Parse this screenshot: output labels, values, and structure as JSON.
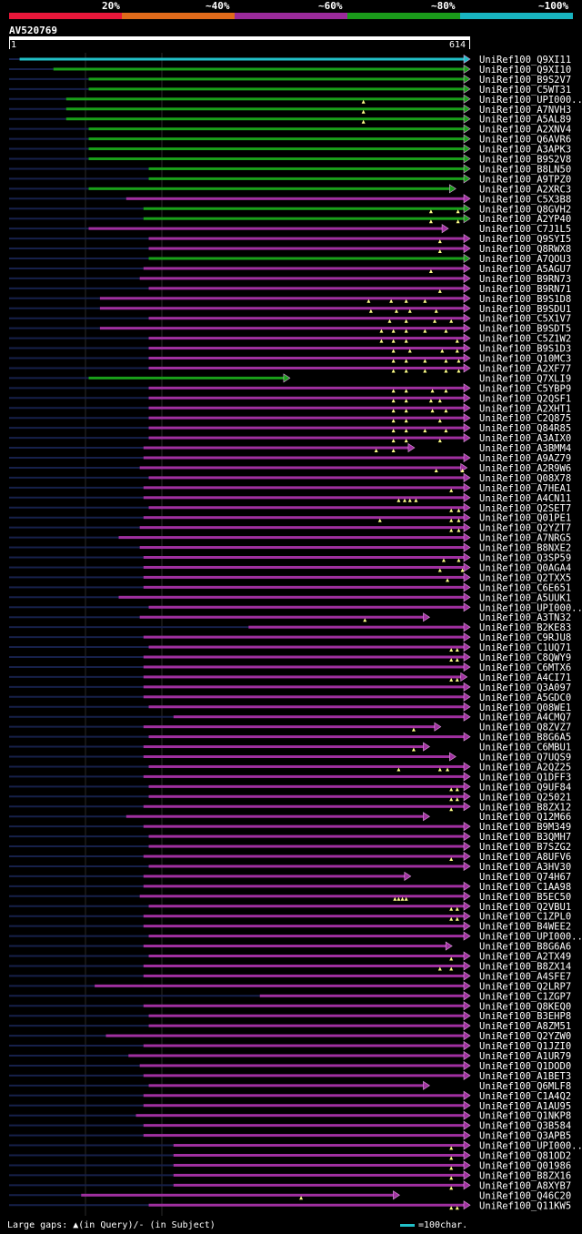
{
  "scale": {
    "labels": [
      "20%",
      "~40%",
      "~60%",
      "~80%",
      "~100%"
    ],
    "colors": [
      "#e8173a",
      "#e06a1a",
      "#9a2a9a",
      "#1a9a1a",
      "#18b4c0"
    ]
  },
  "chart_data": {
    "type": "alignment",
    "title": "AV520769",
    "query_start": "1",
    "query_end": "614",
    "xlim": [
      1,
      614
    ],
    "footer": "Large gaps: ▲(in Query)/- (in Subject)",
    "legend": "=100char.",
    "hits": [
      {
        "name": "UniRef100_Q9XI11",
        "start": 15,
        "end": 614,
        "color": "cyan",
        "gaps": []
      },
      {
        "name": "UniRef100_Q9XI10",
        "start": 60,
        "end": 614,
        "color": "green",
        "gaps": []
      },
      {
        "name": "UniRef100_B9S2V7",
        "start": 107,
        "end": 614,
        "color": "green",
        "gaps": []
      },
      {
        "name": "UniRef100_C5WT31",
        "start": 107,
        "end": 614,
        "color": "green",
        "gaps": []
      },
      {
        "name": "UniRef100_UPI000..",
        "start": 77,
        "end": 614,
        "color": "green",
        "gaps": [
          473
        ]
      },
      {
        "name": "UniRef100_A7NVH3",
        "start": 77,
        "end": 614,
        "color": "green",
        "gaps": [
          473
        ]
      },
      {
        "name": "UniRef100_A5AL89",
        "start": 77,
        "end": 614,
        "color": "green",
        "gaps": [
          473
        ]
      },
      {
        "name": "UniRef100_A2XNV4",
        "start": 107,
        "end": 614,
        "color": "green",
        "gaps": []
      },
      {
        "name": "UniRef100_Q6AVR6",
        "start": 107,
        "end": 614,
        "color": "green",
        "gaps": []
      },
      {
        "name": "UniRef100_A3APK3",
        "start": 107,
        "end": 614,
        "color": "green",
        "gaps": []
      },
      {
        "name": "UniRef100_B9S2V8",
        "start": 107,
        "end": 614,
        "color": "green",
        "gaps": []
      },
      {
        "name": "UniRef100_B8LN50",
        "start": 187,
        "end": 614,
        "color": "green",
        "gaps": []
      },
      {
        "name": "UniRef100_A9TPZ0",
        "start": 187,
        "end": 614,
        "color": "green",
        "gaps": []
      },
      {
        "name": "UniRef100_A2XRC3",
        "start": 107,
        "end": 595,
        "color": "green",
        "gaps": []
      },
      {
        "name": "UniRef100_C5X3B8",
        "start": 157,
        "end": 614,
        "color": "purple",
        "gaps": []
      },
      {
        "name": "UniRef100_Q8GVH2",
        "start": 180,
        "end": 614,
        "color": "green",
        "gaps": [
          563,
          599
        ]
      },
      {
        "name": "UniRef100_A2YP40",
        "start": 180,
        "end": 614,
        "color": "green",
        "gaps": [
          563,
          599
        ]
      },
      {
        "name": "UniRef100_C7J1L5",
        "start": 107,
        "end": 585,
        "color": "purple",
        "gaps": []
      },
      {
        "name": "UniRef100_Q9SYI5",
        "start": 187,
        "end": 614,
        "color": "purple",
        "gaps": [
          575
        ]
      },
      {
        "name": "UniRef100_Q8RWX8",
        "start": 187,
        "end": 614,
        "color": "purple",
        "gaps": [
          575
        ]
      },
      {
        "name": "UniRef100_A7QOU3",
        "start": 187,
        "end": 614,
        "color": "green",
        "gaps": []
      },
      {
        "name": "UniRef100_A5AGU7",
        "start": 180,
        "end": 614,
        "color": "purple",
        "gaps": [
          563
        ]
      },
      {
        "name": "UniRef100_B9RN73",
        "start": 175,
        "end": 614,
        "color": "purple",
        "gaps": []
      },
      {
        "name": "UniRef100_B9RN71",
        "start": 187,
        "end": 614,
        "color": "purple",
        "gaps": [
          575
        ]
      },
      {
        "name": "UniRef100_B9S1D8",
        "start": 122,
        "end": 614,
        "color": "purple",
        "gaps": [
          480,
          510,
          530,
          555
        ]
      },
      {
        "name": "UniRef100_B9SDU1",
        "start": 122,
        "end": 614,
        "color": "purple",
        "gaps": [
          483,
          517,
          535,
          570
        ]
      },
      {
        "name": "UniRef100_C5X1V7",
        "start": 187,
        "end": 614,
        "color": "purple",
        "gaps": [
          508,
          530,
          568,
          590
        ]
      },
      {
        "name": "UniRef100_B9SDT5",
        "start": 122,
        "end": 614,
        "color": "purple",
        "gaps": [
          497,
          513,
          530,
          555,
          583
        ]
      },
      {
        "name": "UniRef100_C5Z1W2",
        "start": 187,
        "end": 614,
        "color": "purple",
        "gaps": [
          497,
          513,
          530,
          598
        ]
      },
      {
        "name": "UniRef100_B9S1D3",
        "start": 187,
        "end": 614,
        "color": "purple",
        "gaps": [
          513,
          535,
          578,
          598
        ]
      },
      {
        "name": "UniRef100_Q10MC3",
        "start": 187,
        "end": 614,
        "color": "purple",
        "gaps": [
          513,
          530,
          555,
          583,
          600
        ]
      },
      {
        "name": "UniRef100_A2XF77",
        "start": 187,
        "end": 614,
        "color": "purple",
        "gaps": [
          513,
          530,
          555,
          583,
          600,
          615
        ]
      },
      {
        "name": "UniRef100_Q7XLI9",
        "start": 107,
        "end": 374,
        "color": "green",
        "gaps": []
      },
      {
        "name": "UniRef100_C5YBP9",
        "start": 187,
        "end": 614,
        "color": "purple",
        "gaps": [
          513,
          530,
          565,
          583
        ]
      },
      {
        "name": "UniRef100_Q2QSF1",
        "start": 187,
        "end": 614,
        "color": "purple",
        "gaps": [
          513,
          530,
          563,
          575
        ]
      },
      {
        "name": "UniRef100_A2XHT1",
        "start": 187,
        "end": 614,
        "color": "purple",
        "gaps": [
          513,
          530,
          565,
          583
        ]
      },
      {
        "name": "UniRef100_C2Q875",
        "start": 187,
        "end": 614,
        "color": "purple",
        "gaps": [
          513,
          530,
          575
        ]
      },
      {
        "name": "UniRef100_Q84R85",
        "start": 187,
        "end": 614,
        "color": "purple",
        "gaps": [
          513,
          530,
          555,
          583
        ]
      },
      {
        "name": "UniRef100_A3AIX0",
        "start": 187,
        "end": 614,
        "color": "purple",
        "gaps": [
          513,
          530,
          575
        ]
      },
      {
        "name": "UniRef100_A3BMM4",
        "start": 180,
        "end": 540,
        "color": "purple",
        "gaps": [
          490,
          513
        ]
      },
      {
        "name": "UniRef100_A9AZ79",
        "start": 180,
        "end": 614,
        "color": "purple",
        "gaps": []
      },
      {
        "name": "UniRef100_A2R9W6",
        "start": 175,
        "end": 610,
        "color": "purple",
        "gaps": [
          570,
          605
        ]
      },
      {
        "name": "UniRef100_Q08X78",
        "start": 187,
        "end": 614,
        "color": "purple",
        "gaps": []
      },
      {
        "name": "UniRef100_A7HEA1",
        "start": 180,
        "end": 614,
        "color": "purple",
        "gaps": [
          590
        ]
      },
      {
        "name": "UniRef100_A4CN11",
        "start": 180,
        "end": 614,
        "color": "purple",
        "gaps": [
          520,
          528,
          535,
          543
        ]
      },
      {
        "name": "UniRef100_Q2SET7",
        "start": 187,
        "end": 614,
        "color": "purple",
        "gaps": [
          590,
          600
        ]
      },
      {
        "name": "UniRef100_Q01PE1",
        "start": 180,
        "end": 614,
        "color": "purple",
        "gaps": [
          495,
          590,
          600
        ]
      },
      {
        "name": "UniRef100_Q2YZT7",
        "start": 175,
        "end": 614,
        "color": "purple",
        "gaps": [
          590,
          600
        ]
      },
      {
        "name": "UniRef100_A7NRG5",
        "start": 147,
        "end": 614,
        "color": "purple",
        "gaps": []
      },
      {
        "name": "UniRef100_B8NXE2",
        "start": 175,
        "end": 614,
        "color": "purple",
        "gaps": []
      },
      {
        "name": "UniRef100_Q3SP59",
        "start": 180,
        "end": 614,
        "color": "purple",
        "gaps": [
          580,
          600
        ]
      },
      {
        "name": "UniRef100_Q0AGA4",
        "start": 180,
        "end": 614,
        "color": "purple",
        "gaps": [
          575,
          605
        ]
      },
      {
        "name": "UniRef100_Q2TXX5",
        "start": 180,
        "end": 614,
        "color": "purple",
        "gaps": [
          585
        ]
      },
      {
        "name": "UniRef100_C6E651",
        "start": 180,
        "end": 614,
        "color": "purple",
        "gaps": []
      },
      {
        "name": "UniRef100_A5UUK1",
        "start": 147,
        "end": 614,
        "color": "purple",
        "gaps": []
      },
      {
        "name": "UniRef100_UPI000..",
        "start": 187,
        "end": 614,
        "color": "purple",
        "gaps": []
      },
      {
        "name": "UniRef100_A3TN32",
        "start": 175,
        "end": 560,
        "color": "purple",
        "gaps": [
          475
        ]
      },
      {
        "name": "UniRef100_B2KE83",
        "start": 320,
        "end": 614,
        "color": "purple",
        "gaps": []
      },
      {
        "name": "UniRef100_C9RJU8",
        "start": 180,
        "end": 614,
        "color": "purple",
        "gaps": []
      },
      {
        "name": "UniRef100_C1UQ71",
        "start": 187,
        "end": 614,
        "color": "purple",
        "gaps": [
          590,
          598
        ]
      },
      {
        "name": "UniRef100_C8QWY9",
        "start": 180,
        "end": 614,
        "color": "purple",
        "gaps": [
          590,
          598
        ]
      },
      {
        "name": "UniRef100_C6MTX6",
        "start": 180,
        "end": 614,
        "color": "purple",
        "gaps": []
      },
      {
        "name": "UniRef100_A4CI71",
        "start": 180,
        "end": 610,
        "color": "purple",
        "gaps": [
          590,
          598
        ]
      },
      {
        "name": "UniRef100_Q3A097",
        "start": 180,
        "end": 614,
        "color": "purple",
        "gaps": []
      },
      {
        "name": "UniRef100_A5GDC0",
        "start": 180,
        "end": 614,
        "color": "purple",
        "gaps": []
      },
      {
        "name": "UniRef100_Q08WE1",
        "start": 187,
        "end": 614,
        "color": "purple",
        "gaps": []
      },
      {
        "name": "UniRef100_A4CMQ7",
        "start": 220,
        "end": 614,
        "color": "purple",
        "gaps": []
      },
      {
        "name": "UniRef100_Q8ZVZ7",
        "start": 180,
        "end": 575,
        "color": "purple",
        "gaps": [
          540
        ]
      },
      {
        "name": "UniRef100_B8G6A5",
        "start": 187,
        "end": 614,
        "color": "purple",
        "gaps": []
      },
      {
        "name": "UniRef100_C6MBU1",
        "start": 180,
        "end": 560,
        "color": "purple",
        "gaps": [
          540
        ]
      },
      {
        "name": "UniRef100_Q7UQS9",
        "start": 180,
        "end": 595,
        "color": "purple",
        "gaps": []
      },
      {
        "name": "UniRef100_A2QZ25",
        "start": 187,
        "end": 614,
        "color": "purple",
        "gaps": [
          520,
          575,
          585
        ]
      },
      {
        "name": "UniRef100_Q1DFF3",
        "start": 180,
        "end": 614,
        "color": "purple",
        "gaps": []
      },
      {
        "name": "UniRef100_Q9UF84",
        "start": 187,
        "end": 614,
        "color": "purple",
        "gaps": [
          590,
          598
        ]
      },
      {
        "name": "UniRef100_Q25021",
        "start": 187,
        "end": 614,
        "color": "purple",
        "gaps": [
          590,
          598
        ]
      },
      {
        "name": "UniRef100_B8ZX12",
        "start": 180,
        "end": 614,
        "color": "purple",
        "gaps": [
          590
        ]
      },
      {
        "name": "UniRef100_Q12M66",
        "start": 157,
        "end": 560,
        "color": "purple",
        "gaps": []
      },
      {
        "name": "UniRef100_B9M349",
        "start": 180,
        "end": 614,
        "color": "purple",
        "gaps": []
      },
      {
        "name": "UniRef100_B3QMH7",
        "start": 187,
        "end": 614,
        "color": "purple",
        "gaps": []
      },
      {
        "name": "UniRef100_B7SZG2",
        "start": 187,
        "end": 614,
        "color": "purple",
        "gaps": []
      },
      {
        "name": "UniRef100_A8UFV6",
        "start": 180,
        "end": 614,
        "color": "purple",
        "gaps": [
          590
        ]
      },
      {
        "name": "UniRef100_A3HV30",
        "start": 187,
        "end": 614,
        "color": "purple",
        "gaps": []
      },
      {
        "name": "UniRef100_Q74H67",
        "start": 180,
        "end": 535,
        "color": "purple",
        "gaps": []
      },
      {
        "name": "UniRef100_C1AA98",
        "start": 180,
        "end": 614,
        "color": "purple",
        "gaps": []
      },
      {
        "name": "UniRef100_B5EC50",
        "start": 175,
        "end": 614,
        "color": "purple",
        "gaps": [
          515,
          520,
          525,
          530
        ]
      },
      {
        "name": "UniRef100_Q2VBU1",
        "start": 187,
        "end": 614,
        "color": "purple",
        "gaps": [
          590,
          598
        ]
      },
      {
        "name": "UniRef100_C1ZPL0",
        "start": 180,
        "end": 614,
        "color": "purple",
        "gaps": [
          590,
          598
        ]
      },
      {
        "name": "UniRef100_B4WEE2",
        "start": 180,
        "end": 614,
        "color": "purple",
        "gaps": []
      },
      {
        "name": "UniRef100_UPI000..",
        "start": 187,
        "end": 614,
        "color": "purple",
        "gaps": []
      },
      {
        "name": "UniRef100_B8G6A6",
        "start": 180,
        "end": 590,
        "color": "purple",
        "gaps": []
      },
      {
        "name": "UniRef100_A2TX49",
        "start": 187,
        "end": 614,
        "color": "purple",
        "gaps": [
          590
        ]
      },
      {
        "name": "UniRef100_B8ZX14",
        "start": 180,
        "end": 614,
        "color": "purple",
        "gaps": [
          575,
          590
        ]
      },
      {
        "name": "UniRef100_A4SFE7",
        "start": 180,
        "end": 614,
        "color": "purple",
        "gaps": []
      },
      {
        "name": "UniRef100_Q2LRP7",
        "start": 115,
        "end": 614,
        "color": "purple",
        "gaps": []
      },
      {
        "name": "UniRef100_C1ZGP7",
        "start": 335,
        "end": 614,
        "color": "purple",
        "gaps": []
      },
      {
        "name": "UniRef100_Q8KEQ0",
        "start": 180,
        "end": 614,
        "color": "purple",
        "gaps": []
      },
      {
        "name": "UniRef100_B3EHP8",
        "start": 187,
        "end": 614,
        "color": "purple",
        "gaps": []
      },
      {
        "name": "UniRef100_A8ZM51",
        "start": 187,
        "end": 614,
        "color": "purple",
        "gaps": []
      },
      {
        "name": "UniRef100_Q2YZW0",
        "start": 130,
        "end": 614,
        "color": "purple",
        "gaps": []
      },
      {
        "name": "UniRef100_Q1JZI0",
        "start": 180,
        "end": 614,
        "color": "purple",
        "gaps": []
      },
      {
        "name": "UniRef100_A1UR79",
        "start": 160,
        "end": 614,
        "color": "purple",
        "gaps": []
      },
      {
        "name": "UniRef100_Q1DOD0",
        "start": 175,
        "end": 614,
        "color": "purple",
        "gaps": []
      },
      {
        "name": "UniRef100_A1BET3",
        "start": 180,
        "end": 614,
        "color": "purple",
        "gaps": []
      },
      {
        "name": "UniRef100_Q6MLF8",
        "start": 187,
        "end": 560,
        "color": "purple",
        "gaps": []
      },
      {
        "name": "UniRef100_C1A4Q2",
        "start": 180,
        "end": 614,
        "color": "purple",
        "gaps": []
      },
      {
        "name": "UniRef100_A1AU95",
        "start": 180,
        "end": 614,
        "color": "purple",
        "gaps": []
      },
      {
        "name": "UniRef100_Q1NKP8",
        "start": 170,
        "end": 614,
        "color": "purple",
        "gaps": []
      },
      {
        "name": "UniRef100_Q3B584",
        "start": 180,
        "end": 614,
        "color": "purple",
        "gaps": []
      },
      {
        "name": "UniRef100_Q3APB5",
        "start": 180,
        "end": 614,
        "color": "purple",
        "gaps": []
      },
      {
        "name": "UniRef100_UPI000..",
        "start": 220,
        "end": 614,
        "color": "purple",
        "gaps": [
          590
        ]
      },
      {
        "name": "UniRef100_Q81OD2",
        "start": 220,
        "end": 614,
        "color": "purple",
        "gaps": [
          590
        ]
      },
      {
        "name": "UniRef100_Q01986",
        "start": 220,
        "end": 614,
        "color": "purple",
        "gaps": [
          590
        ]
      },
      {
        "name": "UniRef100_B8ZX16",
        "start": 220,
        "end": 614,
        "color": "purple",
        "gaps": [
          590
        ]
      },
      {
        "name": "UniRef100_A8XYB7",
        "start": 220,
        "end": 614,
        "color": "purple",
        "gaps": [
          590
        ]
      },
      {
        "name": "UniRef100_Q46C20",
        "start": 97,
        "end": 520,
        "color": "purple",
        "gaps": [
          390
        ]
      },
      {
        "name": "UniRef100_Q11KW5",
        "start": 187,
        "end": 614,
        "color": "purple",
        "gaps": [
          590,
          598
        ]
      }
    ]
  }
}
